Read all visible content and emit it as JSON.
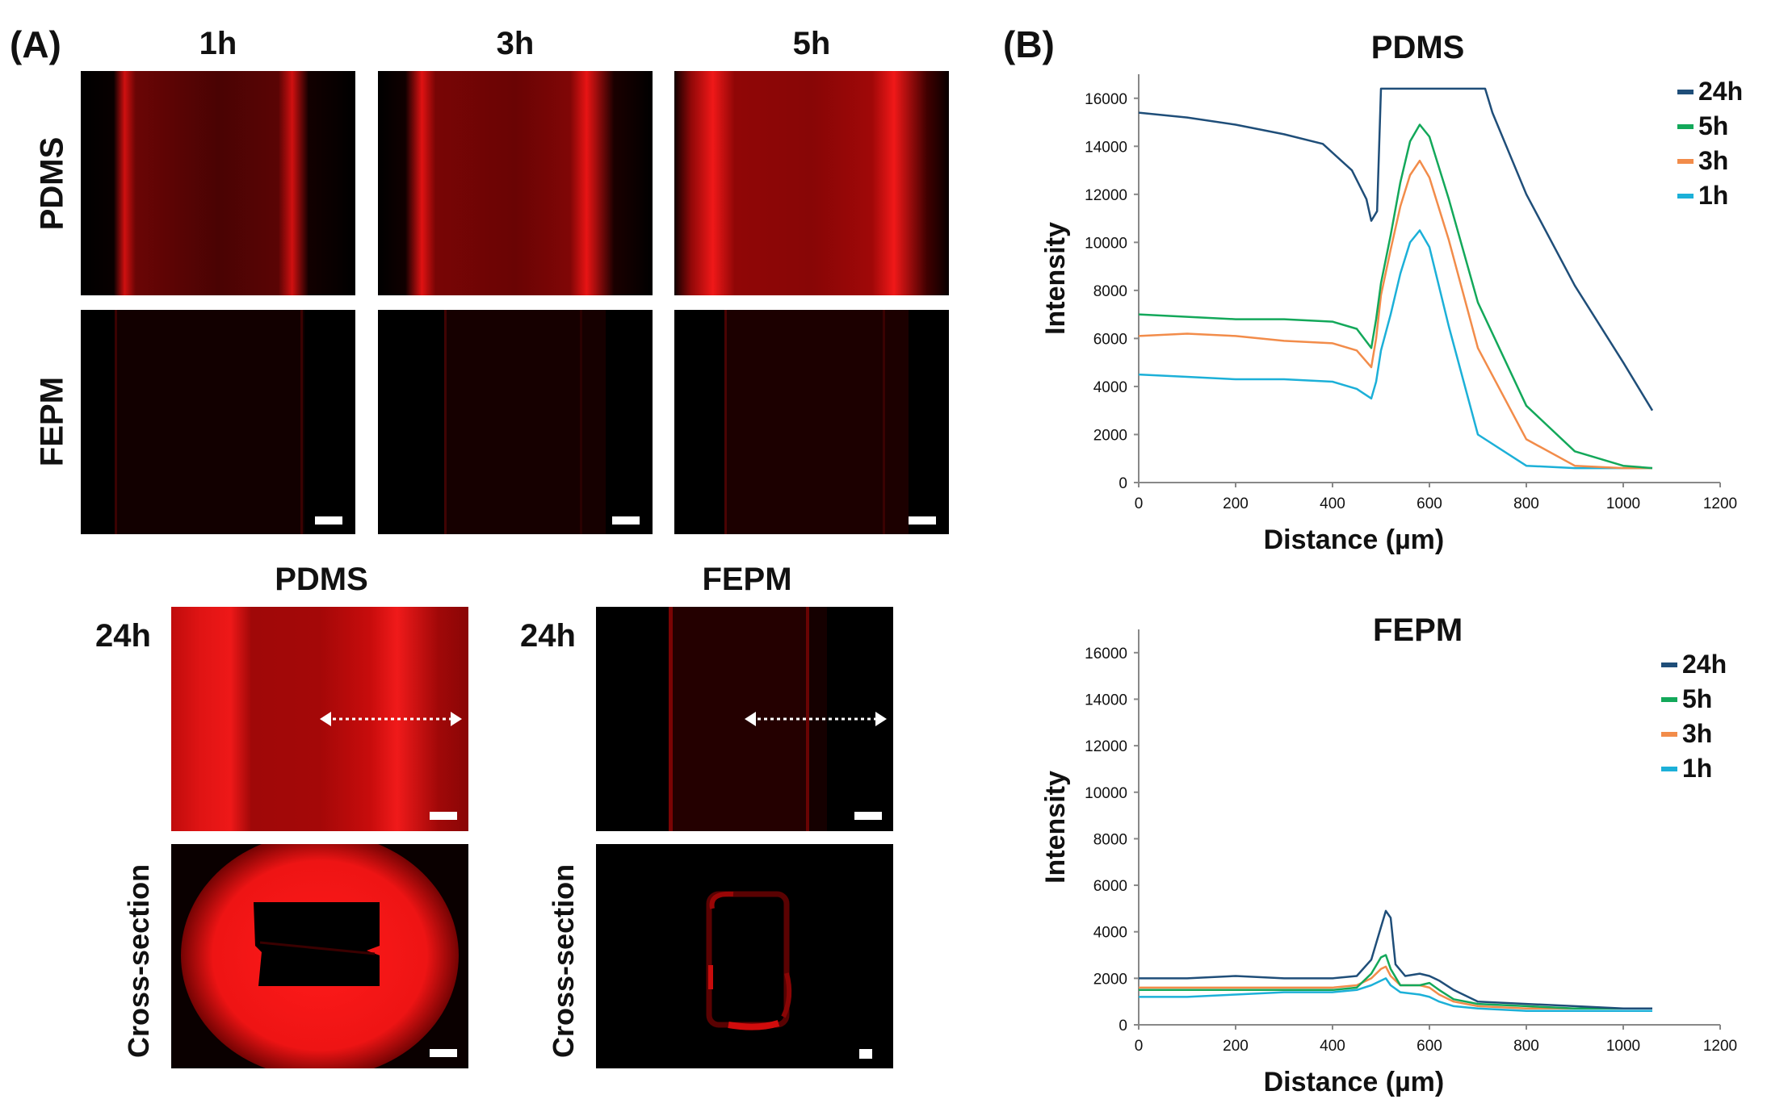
{
  "panel_a": {
    "label": "(A)",
    "columns": [
      "1h",
      "3h",
      "5h"
    ],
    "rows": [
      "PDMS",
      "FEPM"
    ],
    "lower": {
      "pdms_title": "PDMS",
      "fepm_title": "FEPM",
      "time_label": "24h",
      "cross_section_label": "Cross-section"
    }
  },
  "panel_b": {
    "label": "(B)"
  },
  "colors": {
    "24h": "#1f4e79",
    "5h": "#13a85a",
    "3h": "#f28c4a",
    "1h": "#1cb0d8"
  },
  "chart_data": [
    {
      "type": "line",
      "title": "PDMS",
      "xlabel": "Distance (µm)",
      "ylabel": "Intensity",
      "xlim": [
        0,
        1200
      ],
      "ylim": [
        0,
        17000
      ],
      "xticks": [
        "0",
        "200",
        "400",
        "600",
        "800",
        "1000",
        "1200"
      ],
      "yticks": [
        "0",
        "2000",
        "4000",
        "6000",
        "8000",
        "10000",
        "12000",
        "14000",
        "16000"
      ],
      "legend": [
        "24h",
        "5h",
        "3h",
        "1h"
      ],
      "legend_position": "top-right",
      "series": [
        {
          "name": "24h",
          "x": [
            0,
            100,
            200,
            300,
            380,
            440,
            470,
            480,
            492,
            500,
            520,
            560,
            600,
            650,
            700,
            715,
            730,
            800,
            900,
            1000,
            1060
          ],
          "y": [
            15400,
            15200,
            14900,
            14500,
            14100,
            13000,
            11800,
            10900,
            11300,
            16400,
            16400,
            16400,
            16400,
            16400,
            16400,
            16400,
            15400,
            12000,
            8200,
            5000,
            3000
          ]
        },
        {
          "name": "5h",
          "x": [
            0,
            100,
            200,
            300,
            400,
            450,
            480,
            490,
            500,
            520,
            540,
            560,
            580,
            600,
            640,
            700,
            800,
            900,
            1000,
            1060
          ],
          "y": [
            7000,
            6900,
            6800,
            6800,
            6700,
            6400,
            5600,
            6800,
            8300,
            10300,
            12500,
            14200,
            14900,
            14400,
            11800,
            7500,
            3200,
            1300,
            700,
            600
          ]
        },
        {
          "name": "3h",
          "x": [
            0,
            100,
            200,
            300,
            400,
            450,
            480,
            490,
            500,
            520,
            540,
            560,
            580,
            600,
            640,
            700,
            800,
            900,
            1000,
            1060
          ],
          "y": [
            6100,
            6200,
            6100,
            5900,
            5800,
            5500,
            4800,
            6000,
            7800,
            9700,
            11500,
            12800,
            13400,
            12700,
            10100,
            5600,
            1800,
            700,
            600,
            600
          ]
        },
        {
          "name": "1h",
          "x": [
            0,
            100,
            200,
            300,
            400,
            450,
            480,
            490,
            500,
            520,
            540,
            560,
            580,
            600,
            640,
            700,
            800,
            900,
            1000,
            1060
          ],
          "y": [
            4500,
            4400,
            4300,
            4300,
            4200,
            3900,
            3500,
            4200,
            5500,
            7000,
            8700,
            10000,
            10500,
            9800,
            6500,
            2000,
            700,
            600,
            600,
            600
          ]
        }
      ]
    },
    {
      "type": "line",
      "title": "FEPM",
      "xlabel": "Distance (µm)",
      "ylabel": "Intensity",
      "xlim": [
        0,
        1200
      ],
      "ylim": [
        0,
        17000
      ],
      "xticks": [
        "0",
        "200",
        "400",
        "600",
        "800",
        "1000",
        "1200"
      ],
      "yticks": [
        "0",
        "2000",
        "4000",
        "6000",
        "8000",
        "10000",
        "12000",
        "14000",
        "16000"
      ],
      "legend": [
        "24h",
        "5h",
        "3h",
        "1h"
      ],
      "legend_position": "top-right",
      "series": [
        {
          "name": "24h",
          "x": [
            0,
            100,
            200,
            300,
            400,
            450,
            480,
            500,
            510,
            520,
            530,
            550,
            580,
            600,
            620,
            650,
            700,
            800,
            900,
            1000,
            1060
          ],
          "y": [
            2000,
            2000,
            2100,
            2000,
            2000,
            2100,
            2800,
            4200,
            4900,
            4600,
            2600,
            2100,
            2200,
            2100,
            1900,
            1500,
            1000,
            900,
            800,
            700,
            700
          ]
        },
        {
          "name": "5h",
          "x": [
            0,
            100,
            200,
            300,
            400,
            450,
            480,
            500,
            510,
            520,
            540,
            580,
            600,
            620,
            650,
            700,
            800,
            900,
            1000,
            1060
          ],
          "y": [
            1500,
            1500,
            1500,
            1500,
            1500,
            1600,
            2200,
            2900,
            3000,
            2400,
            1700,
            1700,
            1800,
            1500,
            1100,
            900,
            800,
            700,
            700,
            700
          ]
        },
        {
          "name": "3h",
          "x": [
            0,
            100,
            200,
            300,
            400,
            450,
            480,
            500,
            510,
            520,
            540,
            580,
            600,
            620,
            650,
            700,
            800,
            900,
            1000,
            1060
          ],
          "y": [
            1600,
            1600,
            1600,
            1600,
            1600,
            1700,
            2000,
            2400,
            2500,
            2100,
            1700,
            1700,
            1600,
            1300,
            1000,
            800,
            700,
            700,
            700,
            700
          ]
        },
        {
          "name": "1h",
          "x": [
            0,
            100,
            200,
            300,
            400,
            450,
            480,
            500,
            510,
            520,
            540,
            580,
            600,
            620,
            650,
            700,
            800,
            900,
            1000,
            1060
          ],
          "y": [
            1200,
            1200,
            1300,
            1400,
            1400,
            1500,
            1700,
            1900,
            2000,
            1700,
            1400,
            1300,
            1200,
            1000,
            800,
            700,
            600,
            600,
            600,
            600
          ]
        }
      ]
    }
  ]
}
